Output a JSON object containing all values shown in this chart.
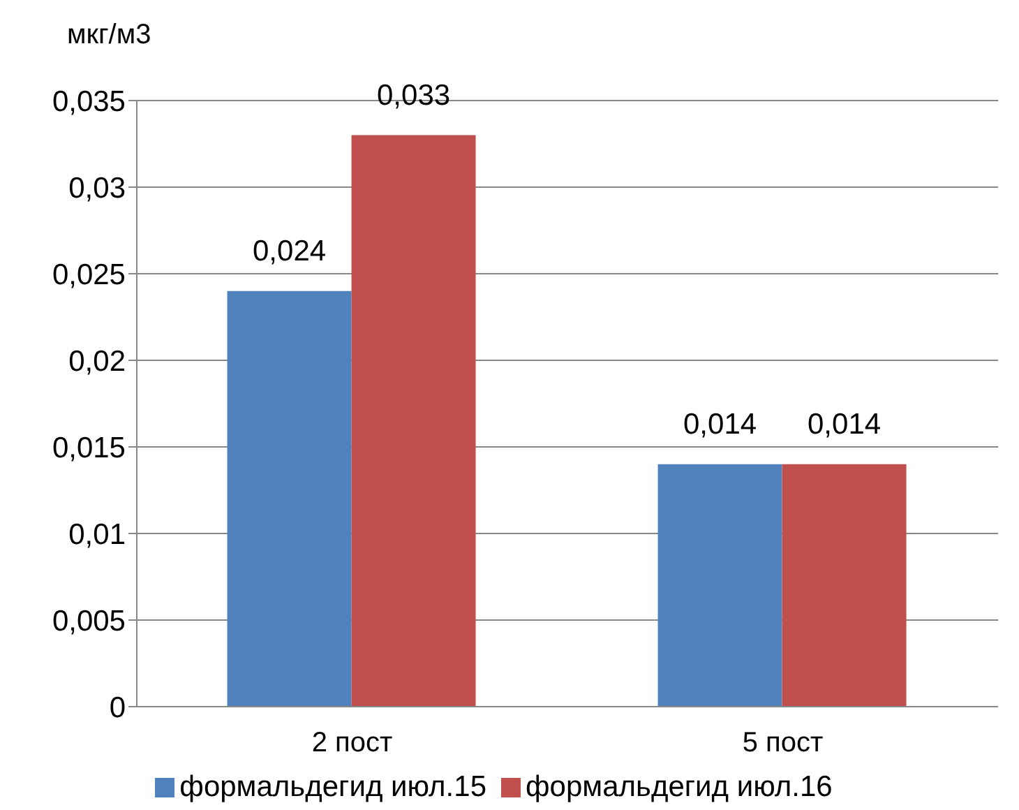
{
  "chart_data": {
    "type": "bar",
    "ylabel": "мкг/м3",
    "categories": [
      "2 пост",
      "5 пост"
    ],
    "series": [
      {
        "name": "формальдегид июл.15",
        "color": "#4f81bd",
        "values": [
          0.024,
          0.014
        ],
        "value_labels": [
          "0,024",
          "0,014"
        ]
      },
      {
        "name": "формальдегид июл.16",
        "color": "#c0504d",
        "values": [
          0.033,
          0.014
        ],
        "value_labels": [
          "0,033",
          "0,014"
        ]
      }
    ],
    "ylim": [
      0,
      0.035
    ],
    "yticks": [
      0,
      {
        "value": 0.005,
        "label": "0,005"
      },
      {
        "value": 0.01,
        "label": "0,01"
      },
      {
        "value": 0.015,
        "label": "0,015"
      },
      {
        "value": 0.02,
        "label": "0,02"
      },
      {
        "value": 0.025,
        "label": "0,025"
      },
      {
        "value": 0.03,
        "label": "0,03"
      },
      {
        "value": 0.035,
        "label": "0,035"
      }
    ],
    "grid": "y",
    "legend": "bottom"
  }
}
